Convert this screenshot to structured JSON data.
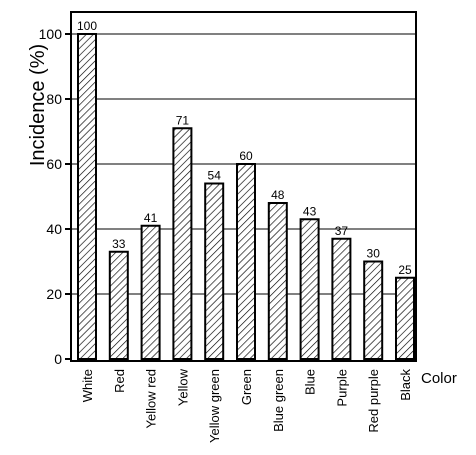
{
  "chart_data": {
    "type": "bar",
    "ylabel": "Incidence (%)",
    "xlabel": "Color",
    "ylim": [
      0,
      110
    ],
    "yticks": [
      0,
      20,
      40,
      60,
      80,
      100
    ],
    "grid": "horizontal",
    "bar_fill": "diagonal-hatch",
    "categories": [
      "White",
      "Red",
      "Yellow red",
      "Yellow",
      "Yellow green",
      "Green",
      "Blue green",
      "Blue",
      "Purple",
      "Red purple",
      "Black"
    ],
    "values": [
      100,
      33,
      41,
      71,
      54,
      60,
      48,
      43,
      37,
      30,
      25
    ],
    "data_labels": [
      "100",
      "33",
      "41",
      "71",
      "54",
      "60",
      "48",
      "43",
      "37",
      "30",
      "25"
    ]
  }
}
